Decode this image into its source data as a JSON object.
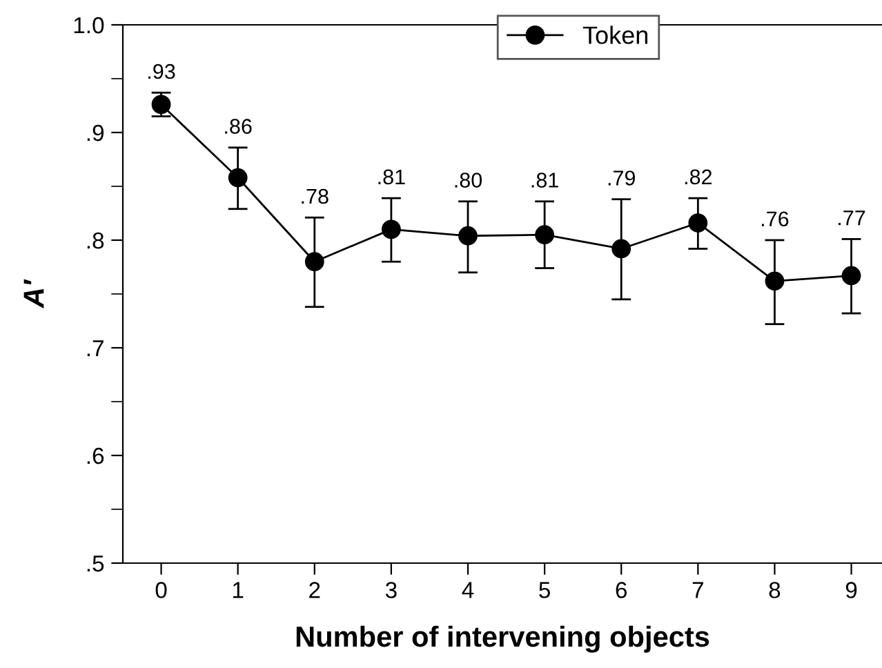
{
  "chart_data": {
    "type": "line",
    "xlabel": "Number of intervening objects",
    "ylabel": "A′",
    "categories": [
      "0",
      "1",
      "2",
      "3",
      "4",
      "5",
      "6",
      "7",
      "8",
      "9"
    ],
    "series": [
      {
        "name": "Token",
        "color": "#000000",
        "values": [
          0.926,
          0.858,
          0.78,
          0.81,
          0.804,
          0.805,
          0.792,
          0.816,
          0.762,
          0.767
        ],
        "errors": [
          [
            0.915,
            0.937
          ],
          [
            0.829,
            0.886
          ],
          [
            0.738,
            0.821
          ],
          [
            0.78,
            0.839
          ],
          [
            0.77,
            0.836
          ],
          [
            0.774,
            0.836
          ],
          [
            0.745,
            0.838
          ],
          [
            0.792,
            0.839
          ],
          [
            0.722,
            0.8
          ],
          [
            0.732,
            0.801
          ]
        ],
        "value_labels": [
          ".93",
          ".86",
          ".78",
          ".81",
          ".80",
          ".81",
          ".79",
          ".82",
          ".76",
          ".77"
        ]
      }
    ],
    "ylim": [
      0.5,
      1.0
    ],
    "yticks": [
      {
        "value": 0.5,
        "label": ".5"
      },
      {
        "value": 0.6,
        "label": ".6"
      },
      {
        "value": 0.7,
        "label": ".7"
      },
      {
        "value": 0.8,
        "label": ".8"
      },
      {
        "value": 0.9,
        "label": ".9"
      },
      {
        "value": 1.0,
        "label": "1.0"
      }
    ],
    "marker": "circle",
    "line_style": "solid",
    "legend": "top",
    "grid": false
  }
}
